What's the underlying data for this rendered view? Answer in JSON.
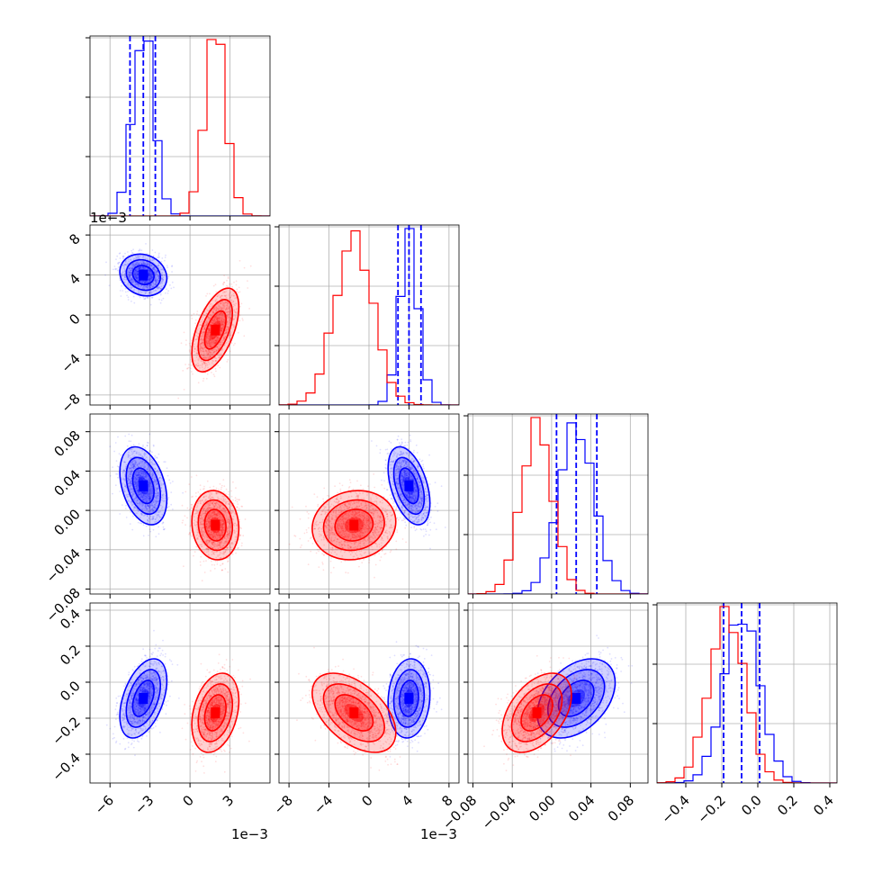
{
  "chart_data": {
    "type": "corner",
    "title": "",
    "grid": true,
    "series": [
      {
        "color": "#0000ff",
        "params": [
          {
            "mean": -0.0035,
            "sd": 0.0008,
            "q": [
              -0.0045,
              -0.0035,
              -0.0026
            ]
          },
          {
            "mean": 0.004,
            "sd": 0.00095,
            "q": [
              0.0029,
              0.004,
              0.0052
            ]
          },
          {
            "mean": 0.025,
            "sd": 0.018,
            "q": [
              0.005,
              0.025,
              0.046
            ]
          },
          {
            "mean": -0.09,
            "sd": 0.1,
            "q": [
              -0.19,
              -0.09,
              0.01
            ]
          }
        ],
        "corr": {
          "1,0": -0.15,
          "2,0": -0.35,
          "2,1": -0.45,
          "3,0": 0.45,
          "3,1": 0.1,
          "3,2": 0.4
        }
      },
      {
        "color": "#ff0000",
        "params": [
          {
            "mean": 0.0019,
            "sd": 0.0008
          },
          {
            "mean": -0.0015,
            "sd": 0.0019
          },
          {
            "mean": -0.015,
            "sd": 0.016
          },
          {
            "mean": -0.17,
            "sd": 0.1
          }
        ],
        "corr": {
          "1,0": 0.55,
          "2,0": -0.1,
          "2,1": 0.1,
          "3,0": 0.3,
          "3,1": -0.5,
          "3,2": 0.45
        }
      }
    ],
    "axes": [
      {
        "range": [
          -0.0075,
          0.006
        ],
        "ticks": [
          -0.006,
          -0.003,
          0,
          0.003
        ],
        "tick_labels": [
          "−6",
          "−3",
          "0",
          "3"
        ],
        "offset_label": "1e−3"
      },
      {
        "range": [
          -0.009,
          0.009
        ],
        "ticks": [
          -0.008,
          -0.004,
          0,
          0.004,
          0.008
        ],
        "tick_labels": [
          "−8",
          "−4",
          "0",
          "4",
          "8"
        ],
        "offset_label": "1e−3"
      },
      {
        "range": [
          -0.085,
          0.098
        ],
        "ticks": [
          -0.08,
          -0.04,
          0,
          0.04,
          0.08
        ],
        "tick_labels": [
          "−0.08",
          "−0.04",
          "0.00",
          "0.04",
          "0.08"
        ],
        "offset_label": ""
      },
      {
        "range": [
          -0.56,
          0.44
        ],
        "ticks": [
          -0.4,
          -0.2,
          0,
          0.2,
          0.4
        ],
        "tick_labels": [
          "−0.4",
          "−0.2",
          "0.0",
          "0.2",
          "0.4"
        ],
        "offset_label": ""
      }
    ]
  }
}
